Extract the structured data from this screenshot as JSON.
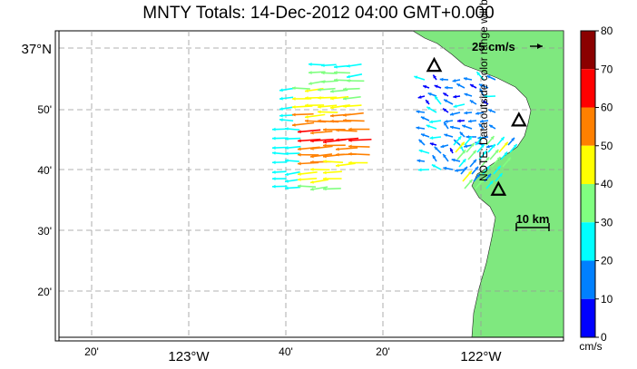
{
  "title": "MNTY Totals: 14-Dec-2012 04:00 GMT+0.000",
  "latitude_labels": [
    "37°N",
    "50'",
    "40'",
    "30'",
    "20'"
  ],
  "longitude_labels": [
    "20'",
    "123°W",
    "40'",
    "20'",
    "122°W"
  ],
  "reference_vector_label": "25 cm/s",
  "scale_bar_label": "10 km",
  "colorbar": {
    "ticks": [
      "80",
      "70",
      "60",
      "50",
      "40",
      "30",
      "20",
      "10",
      "0"
    ],
    "unit": "cm/s",
    "colors": [
      "#8b0000",
      "#ff0000",
      "#ff8000",
      "#ffff00",
      "#80ff80",
      "#00ffff",
      "#0080ff",
      "#0000ff"
    ]
  },
  "note": "NOTE: Data outside color range will be saturated.",
  "colors": {
    "land": "#7fe87f",
    "grid": "#999999",
    "site_marker": "#000000"
  },
  "sites": [
    {
      "name": "site-north",
      "lon": -122.16,
      "lat": 36.95
    },
    {
      "name": "site-east",
      "lon": -121.87,
      "lat": 36.8
    },
    {
      "name": "site-south",
      "lon": -121.94,
      "lat": 36.61
    }
  ]
}
